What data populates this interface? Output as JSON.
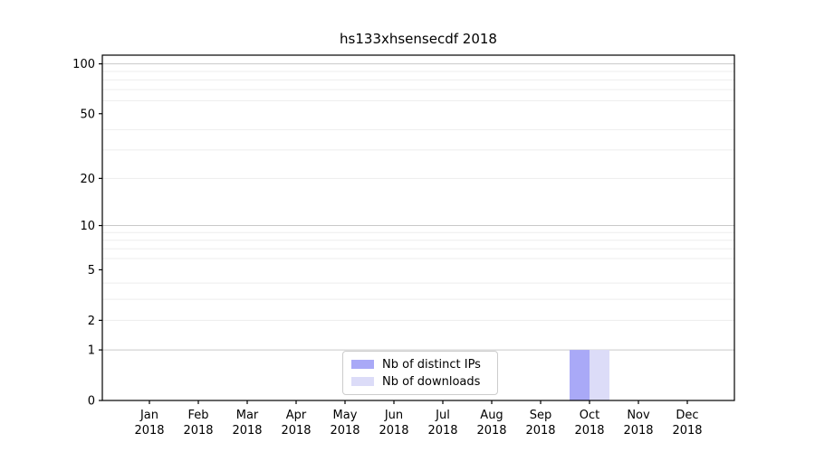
{
  "chart_data": {
    "type": "bar",
    "title": "hs133xhsensecdf 2018",
    "x_ticks": [
      {
        "month": "Jan",
        "year": "2018"
      },
      {
        "month": "Feb",
        "year": "2018"
      },
      {
        "month": "Mar",
        "year": "2018"
      },
      {
        "month": "Apr",
        "year": "2018"
      },
      {
        "month": "May",
        "year": "2018"
      },
      {
        "month": "Jun",
        "year": "2018"
      },
      {
        "month": "Jul",
        "year": "2018"
      },
      {
        "month": "Aug",
        "year": "2018"
      },
      {
        "month": "Sep",
        "year": "2018"
      },
      {
        "month": "Oct",
        "year": "2018"
      },
      {
        "month": "Nov",
        "year": "2018"
      },
      {
        "month": "Dec",
        "year": "2018"
      }
    ],
    "y_axis": {
      "scale": "log10(value+1)",
      "tick_values": [
        0,
        1,
        2,
        5,
        10,
        20,
        50,
        100
      ],
      "min": 0,
      "max": 112.8
    },
    "series": [
      {
        "name": "Nb of distinct IPs",
        "color": "#a9a9f7",
        "values": [
          0,
          0,
          0,
          0,
          0,
          0,
          0,
          0,
          0,
          1,
          0,
          0
        ]
      },
      {
        "name": "Nb of downloads",
        "color": "#dcdcf8",
        "values": [
          0,
          0,
          0,
          0,
          0,
          0,
          0,
          0,
          0,
          1,
          0,
          0
        ]
      }
    ],
    "legend": {
      "location": "lower center, inside plot"
    },
    "grid": {
      "major_color": "#c9c9c9",
      "minor_color": "#ededed",
      "minor_values": [
        2,
        3,
        4,
        6,
        7,
        8,
        9,
        20,
        30,
        40,
        60,
        70,
        80,
        90
      ]
    },
    "axis_color": "#000000",
    "background": "#ffffff"
  }
}
